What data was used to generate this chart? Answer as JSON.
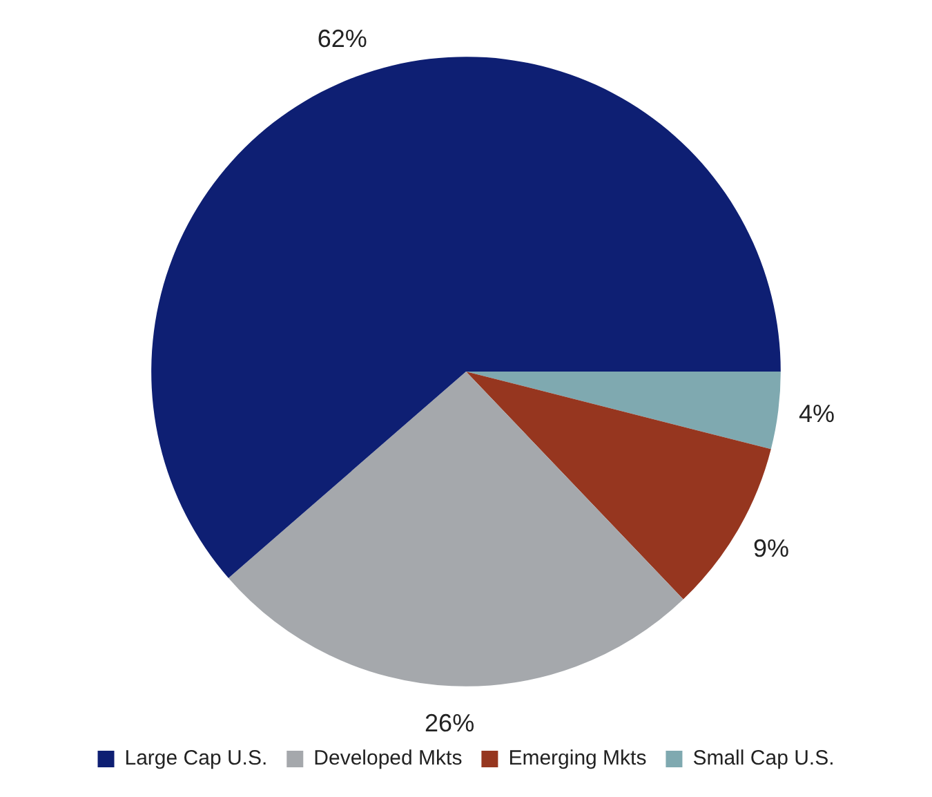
{
  "chart_data": {
    "type": "pie",
    "categories": [
      "Large Cap U.S.",
      "Developed Mkts",
      "Emerging Mkts",
      "Small Cap U.S."
    ],
    "values": [
      62,
      26,
      9,
      4
    ],
    "colors": [
      "#0e1f73",
      "#a5a8ac",
      "#96361f",
      "#7fa9b0"
    ],
    "value_labels": [
      "62%",
      "26%",
      "9%",
      "4%"
    ],
    "legend": "bottom"
  }
}
